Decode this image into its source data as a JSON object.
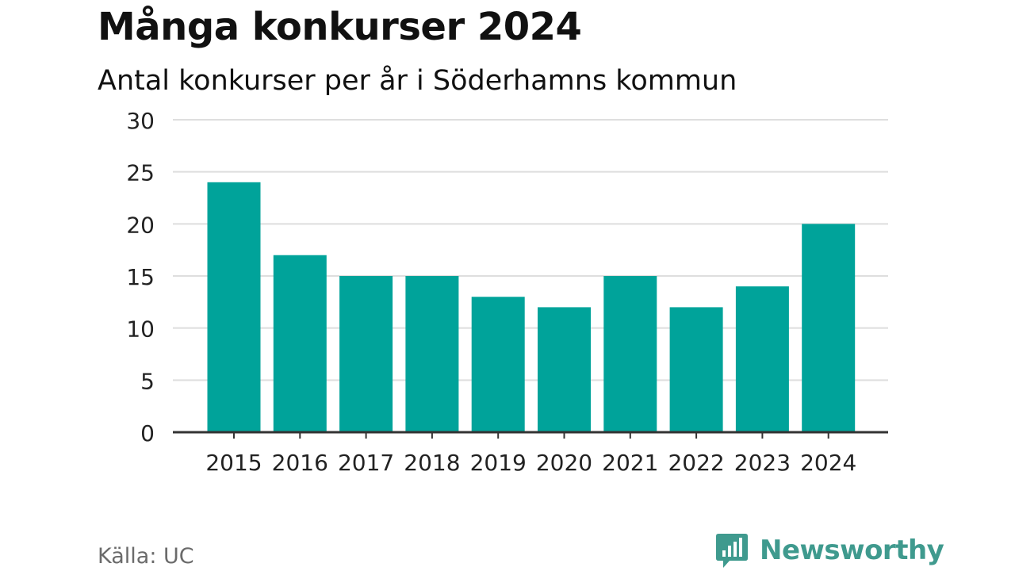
{
  "chart_data": {
    "type": "bar",
    "title": "Många konkurser 2024",
    "subtitle": "Antal konkurser per år i Söderhamns kommun",
    "categories": [
      "2015",
      "2016",
      "2017",
      "2018",
      "2019",
      "2020",
      "2021",
      "2022",
      "2023",
      "2024"
    ],
    "values": [
      24,
      17,
      15,
      15,
      13,
      12,
      15,
      12,
      14,
      20
    ],
    "ylim": [
      0,
      30
    ],
    "yticks": [
      "0",
      "5",
      "10",
      "15",
      "20",
      "25",
      "30"
    ],
    "grid": true,
    "legend": "none"
  },
  "colors": {
    "bar": "#00A39A",
    "grid": "#dedede",
    "axis": "#333333",
    "brand": "#3f9a8e"
  },
  "footer": {
    "source": "Källa: UC",
    "brand_name": "Newsworthy",
    "brand_icon": "bar-chart-speech-bubble-icon"
  }
}
